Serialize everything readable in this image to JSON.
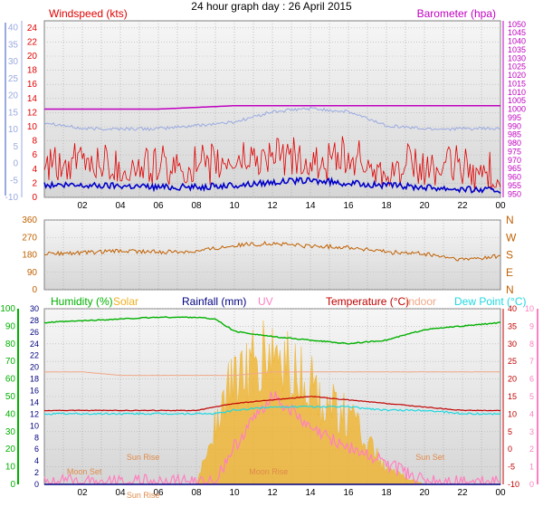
{
  "title": "24 hour graph day : 26 April 2015",
  "colors": {
    "wind": "#e00000",
    "wind_avg": "#0000c8",
    "baro": "#c000c0",
    "temp_axis": "#9aaae0",
    "direction": "#c06000",
    "humidity": "#00b000",
    "solar": "#f0b020",
    "rain": "#000080",
    "uv": "#ff80c0",
    "temperature": "#c00000",
    "indoor": "#f0a888",
    "dewpoint": "#20d8e0",
    "plot_top": "#f6f6f6",
    "plot_bottom": "#d6d6d6"
  },
  "x_ticks": [
    "02",
    "04",
    "06",
    "08",
    "10",
    "12",
    "14",
    "16",
    "18",
    "20",
    "22",
    "00"
  ],
  "chart_data": [
    {
      "type": "line",
      "title": "24 hour graph day : 26 April 2015",
      "left_label": "Windspeed (kts)",
      "right_label": "Barometer (hpa)",
      "left_ticks": [
        "24",
        "22",
        "20",
        "18",
        "16",
        "14",
        "12",
        "10",
        "8",
        "6",
        "4",
        "2",
        "0"
      ],
      "left_ylim": [
        0,
        25
      ],
      "right_ticks": [
        "1050",
        "1045",
        "1040",
        "1035",
        "1030",
        "1025",
        "1020",
        "1015",
        "1010",
        "1005",
        "1000",
        "995",
        "990",
        "985",
        "980",
        "975",
        "970",
        "965",
        "960",
        "955",
        "950"
      ],
      "right_ylim": [
        948,
        1052
      ],
      "outer_ticks": [
        "40",
        "35",
        "30",
        "25",
        "20",
        "15",
        "10",
        "5",
        "0",
        "-5",
        "-10"
      ],
      "outer_ylim": [
        -10,
        42
      ],
      "x": [
        0,
        2,
        4,
        6,
        8,
        10,
        12,
        14,
        16,
        18,
        20,
        22,
        24
      ],
      "series": [
        {
          "name": "Windspeed",
          "values": [
            3,
            4,
            3,
            3,
            3,
            4,
            5,
            4,
            4,
            3,
            3,
            3,
            2
          ]
        },
        {
          "name": "",
          "values": [
            1.5,
            1.5,
            1.5,
            1.3,
            1.3,
            1.5,
            2.0,
            2.2,
            1.8,
            1.5,
            1.3,
            1.0,
            0.8
          ]
        },
        {
          "name": "Barometer",
          "values": [
            1000,
            1000,
            1000,
            1000,
            1001,
            1002,
            1002,
            1002,
            1002,
            1002,
            1002,
            1002,
            1002
          ]
        },
        {
          "name": "",
          "values": [
            12,
            10,
            10,
            10,
            11,
            12,
            15,
            16,
            15,
            11,
            10,
            10,
            10
          ]
        }
      ]
    },
    {
      "type": "line",
      "left_ticks": [
        "360",
        "270",
        "180",
        "90",
        "0"
      ],
      "ylim": [
        0,
        360
      ],
      "right_labels": [
        "N",
        "W",
        "S",
        "E",
        "N"
      ],
      "x": [
        0,
        2,
        4,
        6,
        8,
        10,
        12,
        14,
        16,
        18,
        20,
        22,
        24
      ],
      "series": [
        {
          "name": "",
          "values": [
            180,
            185,
            195,
            190,
            195,
            225,
            235,
            220,
            215,
            190,
            180,
            150,
            170
          ]
        }
      ]
    },
    {
      "type": "area",
      "legend": [
        "Humidity  (%)",
        "Solar",
        "Rainfall (mm)",
        "UV",
        "Temperature (°C)",
        "Indoor",
        "Dew Point (°C)"
      ],
      "humidity_ticks": [
        "100",
        "90",
        "80",
        "70",
        "60",
        "50",
        "40",
        "30",
        "20",
        "10",
        "0"
      ],
      "humidity_ylim": [
        0,
        100
      ],
      "rain_ticks": [
        "30",
        "28",
        "26",
        "24",
        "22",
        "20",
        "18",
        "16",
        "14",
        "12",
        "10",
        "8",
        "6",
        "4",
        "2",
        "0"
      ],
      "rain_ylim": [
        0,
        30
      ],
      "temp_ticks": [
        "40",
        "35",
        "30",
        "25",
        "20",
        "15",
        "10",
        "5",
        "0",
        "-5",
        "-10"
      ],
      "temp_ylim": [
        -10,
        40
      ],
      "uv_ticks": [
        "10",
        "9",
        "8",
        "7",
        "6",
        "5",
        "4",
        "3",
        "2",
        "1",
        "0"
      ],
      "uv_ylim": [
        0,
        10
      ],
      "annotations": [
        "Moon Set",
        "Sun Rise",
        "Sun Rise",
        "Moon Rise",
        "Sun Set"
      ],
      "x": [
        0,
        2,
        4,
        6,
        8,
        9,
        10,
        12,
        14,
        16,
        18,
        20,
        22,
        24
      ],
      "series": [
        {
          "name": "Humidity  (%)",
          "values": [
            92,
            93,
            94,
            95,
            95,
            94,
            87,
            84,
            82,
            80,
            82,
            88,
            90,
            92
          ]
        },
        {
          "name": "Temperature (°C)",
          "values": [
            11,
            11,
            11,
            11,
            11,
            12,
            13,
            14,
            15,
            14,
            13,
            12,
            11,
            11
          ]
        },
        {
          "name": "Dew Point (°C)",
          "values": [
            10,
            10,
            10,
            10,
            10,
            10,
            11,
            12,
            12,
            12,
            11,
            11,
            10,
            10
          ]
        },
        {
          "name": "Indoor",
          "values": [
            22,
            22,
            21,
            21,
            21,
            21,
            21,
            22,
            22,
            22,
            22,
            22,
            22,
            22
          ]
        },
        {
          "name": "Solar",
          "values": [
            0,
            0,
            0,
            0,
            0,
            400,
            700,
            850,
            650,
            450,
            100,
            0,
            0,
            0
          ]
        },
        {
          "name": "UV",
          "values": [
            0,
            0,
            0,
            0,
            0,
            0,
            2,
            5,
            3,
            2,
            1,
            0,
            0,
            0
          ]
        },
        {
          "name": "Rainfall (mm)",
          "values": [
            0,
            0,
            0,
            0,
            0,
            0,
            0,
            0,
            0,
            0,
            0,
            0,
            0,
            0
          ]
        }
      ]
    }
  ]
}
